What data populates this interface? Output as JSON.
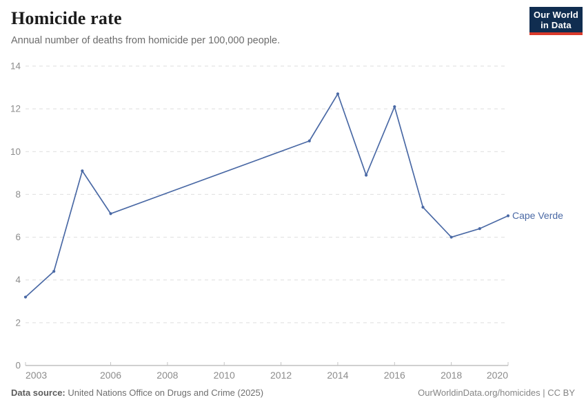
{
  "header": {
    "title": "Homicide rate",
    "subtitle": "Annual number of deaths from homicide per 100,000 people.",
    "logo": {
      "line1": "Our World",
      "line2": "in Data",
      "bg": "#102d50",
      "accent": "#d93a2b"
    }
  },
  "chart_data": {
    "type": "line",
    "title": "Homicide rate",
    "subtitle": "Annual number of deaths from homicide per 100,000 people.",
    "series": [
      {
        "name": "Cape Verde",
        "color": "#4a69a5",
        "x": [
          2003,
          2004,
          2005,
          2006,
          2013,
          2014,
          2015,
          2016,
          2017,
          2018,
          2019,
          2020
        ],
        "values": [
          3.2,
          4.4,
          9.1,
          7.1,
          10.5,
          12.7,
          8.9,
          12.1,
          7.4,
          6.0,
          6.4,
          7.0
        ]
      }
    ],
    "xlim": [
      2003,
      2020
    ],
    "ylim": [
      0,
      14
    ],
    "xticks": [
      2003,
      2006,
      2008,
      2010,
      2012,
      2014,
      2016,
      2018,
      2020
    ],
    "yticks": [
      0,
      2,
      4,
      6,
      8,
      10,
      12,
      14
    ],
    "xlabel": "",
    "ylabel": "",
    "grid": "horizontal-dashed",
    "legend_position": "end-of-line-label",
    "colors": {
      "gridline": "#dedede",
      "axis": "#a0a0a0",
      "tick": "#c4c4c4",
      "tick_label": "#8c8c8c"
    }
  },
  "footer": {
    "source_label": "Data source:",
    "source_text": " United Nations Office on Drugs and Crime (2025)",
    "credit": "OurWorldinData.org/homicides | CC BY"
  }
}
